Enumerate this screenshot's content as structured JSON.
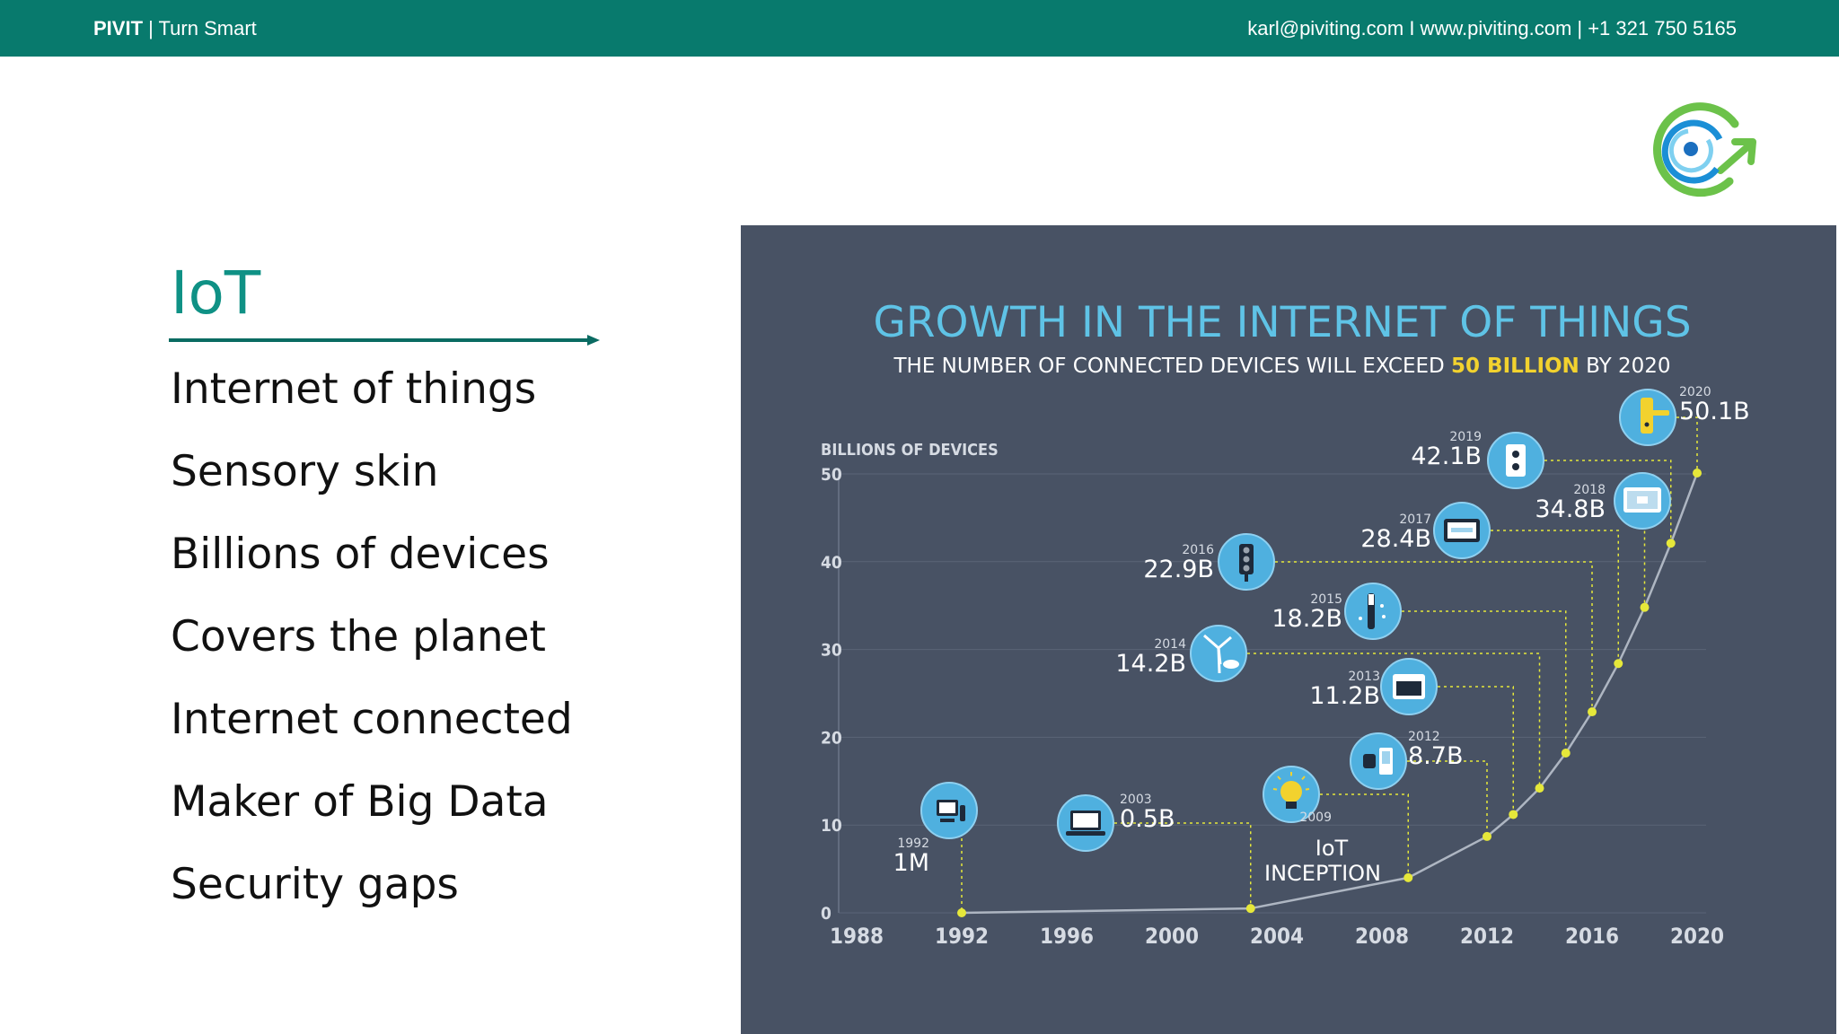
{
  "header": {
    "brand_bold": "PIVIT",
    "brand_rest": " | Turn Smart",
    "contact": "karl@piviting.com I www.piviting.com | +1 321 750 5165"
  },
  "slide": {
    "title": "IoT",
    "bullets": [
      "Internet of things",
      "Sensory skin",
      "Billions of devices",
      "Covers the planet",
      "Internet connected",
      "Maker of Big Data",
      "Security gaps"
    ]
  },
  "colors": {
    "header_bg": "#087a6d",
    "title": "#0f9185",
    "panel_bg": "#485264",
    "chart_title": "#5fc3e6",
    "highlight": "#f2d22e",
    "marker": "#e6e83a",
    "icon_circle": "#4fb0df",
    "logo_green": "#6cc24a",
    "logo_blue": "#1b8fd6"
  },
  "chart_data": {
    "type": "line",
    "title": "GROWTH IN THE INTERNET OF THINGS",
    "subtitle_pre": "THE NUMBER OF CONNECTED DEVICES WILL EXCEED ",
    "subtitle_highlight": "50 BILLION",
    "subtitle_post": " BY 2020",
    "ylabel": "BILLIONS OF DEVICES",
    "xlim": [
      1988,
      2020
    ],
    "ylim": [
      0,
      50
    ],
    "xticks": [
      1988,
      1992,
      1996,
      2000,
      2004,
      2008,
      2012,
      2016,
      2020
    ],
    "yticks": [
      0,
      10,
      20,
      30,
      40,
      50
    ],
    "grid": true,
    "points": [
      {
        "x": 1992,
        "y": 0.001,
        "label": "1M",
        "year": "1992",
        "icon": "computer-icon"
      },
      {
        "x": 2003,
        "y": 0.5,
        "label": "0.5B",
        "year": "2003",
        "icon": "laptop-icon"
      },
      {
        "x": 2009,
        "y": 4,
        "label": "IoT INCEPTION",
        "year": "2009",
        "icon": "lightbulb-icon"
      },
      {
        "x": 2012,
        "y": 8.7,
        "label": "8.7B",
        "year": "2012",
        "icon": "smartwatch-icon"
      },
      {
        "x": 2013,
        "y": 11.2,
        "label": "11.2B",
        "year": "2013",
        "icon": "oven-icon"
      },
      {
        "x": 2014,
        "y": 14.2,
        "label": "14.2B",
        "year": "2014",
        "icon": "wind-turbine-icon"
      },
      {
        "x": 2015,
        "y": 18.2,
        "label": "18.2B",
        "year": "2015",
        "icon": "toothbrush-icon"
      },
      {
        "x": 2016,
        "y": 22.9,
        "label": "22.9B",
        "year": "2016",
        "icon": "traffic-light-icon"
      },
      {
        "x": 2017,
        "y": 28.4,
        "label": "28.4B",
        "year": "2017",
        "icon": "thermostat-icon"
      },
      {
        "x": 2018,
        "y": 34.8,
        "label": "34.8B",
        "year": "2018",
        "icon": "tv-icon"
      },
      {
        "x": 2019,
        "y": 42.1,
        "label": "42.1B",
        "year": "2019",
        "icon": "power-outlet-icon"
      },
      {
        "x": 2020,
        "y": 50.1,
        "label": "50.1B",
        "year": "2020",
        "icon": "door-lock-icon"
      }
    ]
  }
}
